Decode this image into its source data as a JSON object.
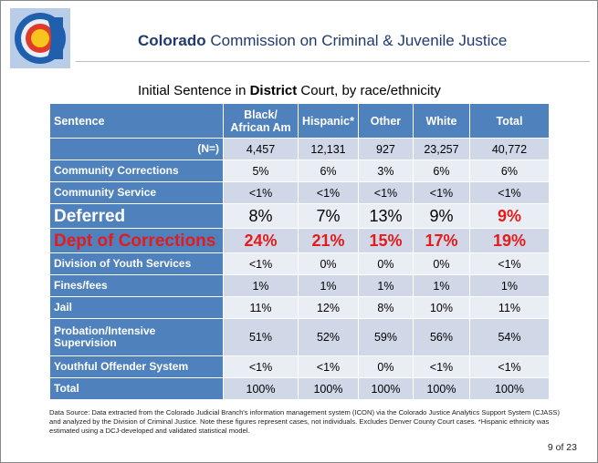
{
  "header": {
    "title_bold": "Colorado",
    "title_rest": "Commission on Criminal & Juvenile Justice"
  },
  "subtitle": {
    "before": "Initial Sentence in ",
    "bold": "District",
    "after": " Court, by race/ethnicity"
  },
  "table": {
    "columns": [
      "Sentence",
      "Black/ African Am",
      "Hispanic*",
      "Other",
      "White",
      "Total"
    ],
    "rows": [
      [
        "(N=)",
        "4,457",
        "12,131",
        "927",
        "23,257",
        "40,772"
      ],
      [
        "Community Corrections",
        "5%",
        "6%",
        "3%",
        "6%",
        "6%"
      ],
      [
        "Community Service",
        "<1%",
        "<1%",
        "<1%",
        "<1%",
        "<1%"
      ],
      [
        "Deferred",
        "8%",
        "7%",
        "13%",
        "9%",
        "9%"
      ],
      [
        "Dept of Corrections",
        "24%",
        "21%",
        "15%",
        "17%",
        "19%"
      ],
      [
        "Division of Youth Services",
        "<1%",
        "0%",
        "0%",
        "0%",
        "<1%"
      ],
      [
        "Fines/fees",
        "1%",
        "1%",
        "1%",
        "1%",
        "1%"
      ],
      [
        "Jail",
        "11%",
        "12%",
        "8%",
        "10%",
        "11%"
      ],
      [
        "Probation/Intensive Supervision",
        "51%",
        "52%",
        "59%",
        "56%",
        "54%"
      ],
      [
        "Youthful Offender System",
        "<1%",
        "<1%",
        "0%",
        "<1%",
        "<1%"
      ],
      [
        "Total",
        "100%",
        "100%",
        "100%",
        "100%",
        "100%"
      ]
    ]
  },
  "footnote": "Data Source: Data extracted from the Colorado Judicial Branch's information management system (ICON) via the Colorado Justice Analytics Support System (CJASS) and analyzed by the Division of Criminal Justice. Note these figures represent cases, not individuals. Excludes Denver County Court cases. *Hispanic ethnicity was estimated using a DCJ-developed and validated statistical model.",
  "page_number": "9 of 23"
}
